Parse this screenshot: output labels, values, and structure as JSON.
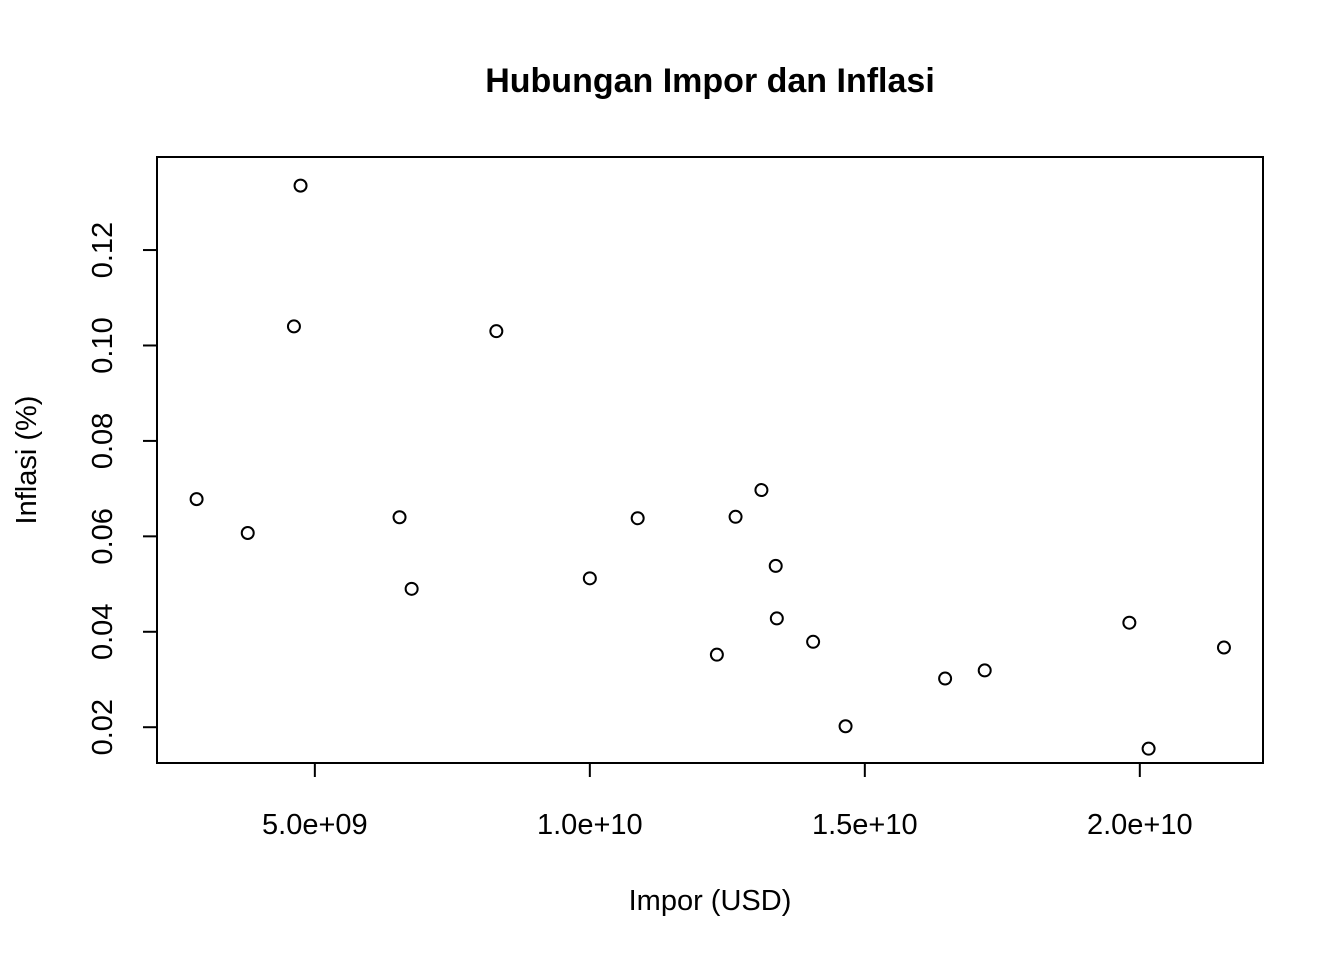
{
  "chart_data": {
    "type": "scatter",
    "title": "Hubungan Impor dan Inflasi",
    "xlabel": "Impor (USD)",
    "ylabel": "Inflasi (%)",
    "xlim": [
      2130000000,
      22240000000
    ],
    "ylim": [
      0.0125,
      0.1395
    ],
    "grid": false,
    "legend": "none",
    "x_ticks": [
      {
        "value": 5000000000,
        "label": "5.0e+09"
      },
      {
        "value": 10000000000,
        "label": "1.0e+10"
      },
      {
        "value": 15000000000,
        "label": "1.5e+10"
      },
      {
        "value": 20000000000,
        "label": "2.0e+10"
      }
    ],
    "y_ticks": [
      {
        "value": 0.02,
        "label": "0.02"
      },
      {
        "value": 0.04,
        "label": "0.04"
      },
      {
        "value": 0.06,
        "label": "0.06"
      },
      {
        "value": 0.08,
        "label": "0.08"
      },
      {
        "value": 0.1,
        "label": "0.10"
      },
      {
        "value": 0.12,
        "label": "0.12"
      }
    ],
    "points": [
      {
        "x": 2850000000,
        "y": 0.0678
      },
      {
        "x": 3780000000,
        "y": 0.0607
      },
      {
        "x": 4620000000,
        "y": 0.104
      },
      {
        "x": 4740000000,
        "y": 0.1335
      },
      {
        "x": 6540000000,
        "y": 0.064
      },
      {
        "x": 6760000000,
        "y": 0.049
      },
      {
        "x": 8300000000,
        "y": 0.103
      },
      {
        "x": 10000000000,
        "y": 0.0512
      },
      {
        "x": 10870000000,
        "y": 0.0638
      },
      {
        "x": 12310000000,
        "y": 0.0352
      },
      {
        "x": 12650000000,
        "y": 0.0641
      },
      {
        "x": 13120000000,
        "y": 0.0697
      },
      {
        "x": 13380000000,
        "y": 0.0538
      },
      {
        "x": 13400000000,
        "y": 0.0428
      },
      {
        "x": 14060000000,
        "y": 0.0379
      },
      {
        "x": 14650000000,
        "y": 0.0202
      },
      {
        "x": 16460000000,
        "y": 0.0302
      },
      {
        "x": 17180000000,
        "y": 0.0319
      },
      {
        "x": 19810000000,
        "y": 0.0419
      },
      {
        "x": 20160000000,
        "y": 0.0155
      },
      {
        "x": 21530000000,
        "y": 0.0367
      }
    ]
  }
}
